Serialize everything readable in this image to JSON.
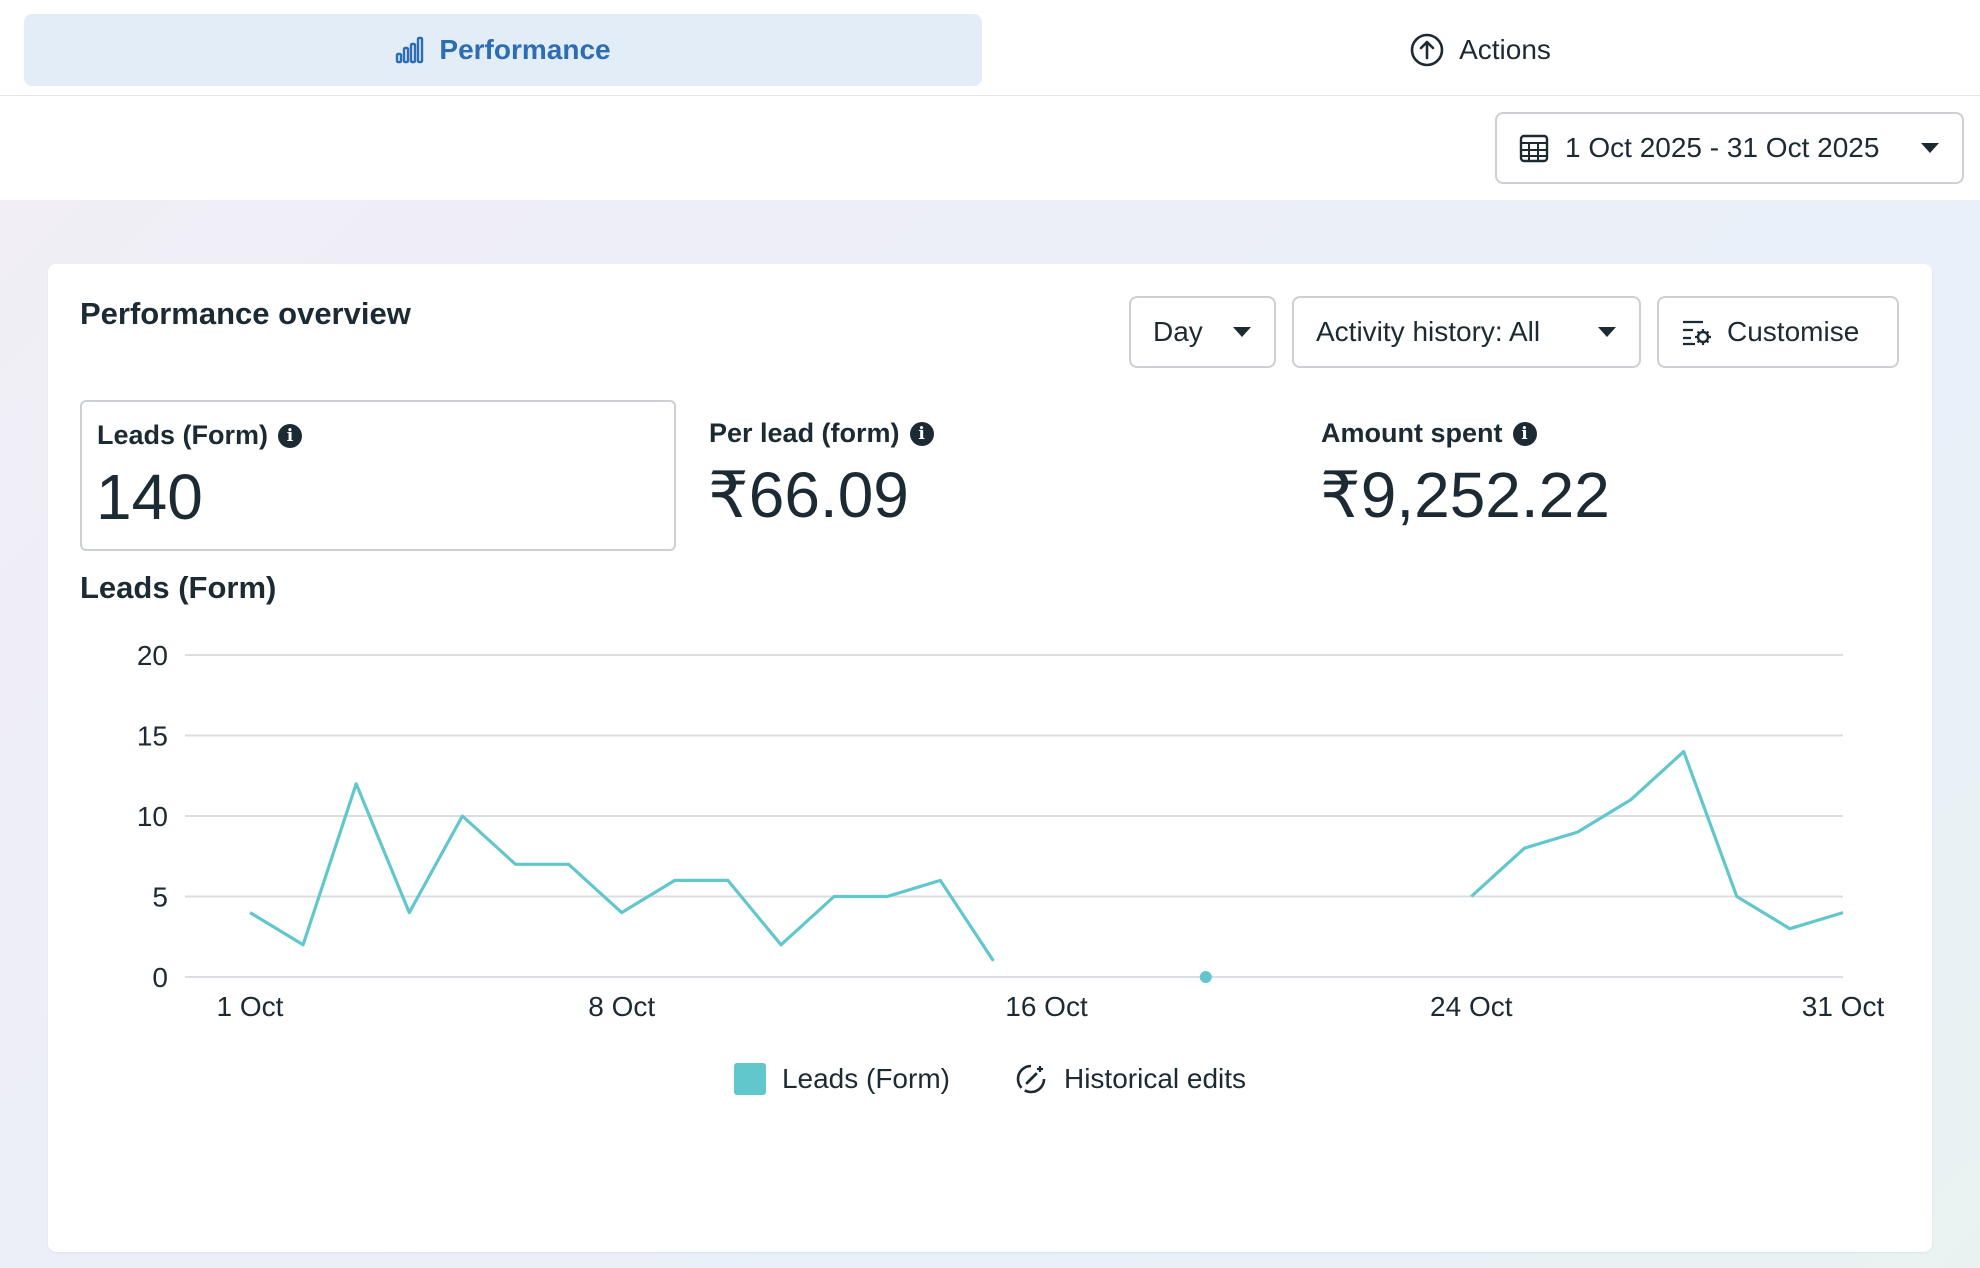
{
  "tabs": {
    "performance": {
      "label": "Performance",
      "icon": "bar-chart-icon"
    },
    "actions": {
      "label": "Actions",
      "icon": "arrow-up-circle-icon"
    }
  },
  "date_range": {
    "label": "1 Oct 2025 - 31 Oct 2025",
    "icon": "calendar-icon"
  },
  "overview": {
    "title": "Performance overview",
    "controls": {
      "granularity": "Day",
      "activity": "Activity history: All",
      "customise": "Customise"
    },
    "metrics": [
      {
        "label": "Leads (Form)",
        "value": "140"
      },
      {
        "label": "Per lead (form)",
        "value": "₹66.09"
      },
      {
        "label": "Amount spent",
        "value": "₹9,252.22"
      }
    ],
    "chart_title": "Leads (Form)",
    "legend": {
      "series": "Leads (Form)",
      "historical": "Historical edits"
    }
  },
  "colors": {
    "accent": "#2d6db3",
    "tab_active_bg": "#e3edf7",
    "series": "#62c7cc",
    "gridline": "#dadde1"
  },
  "chart_data": {
    "type": "line",
    "title": "Leads (Form)",
    "xlabel": "",
    "ylabel": "",
    "ylim": [
      0,
      20
    ],
    "yticks": [
      0,
      5,
      10,
      15,
      20
    ],
    "xticks": [
      {
        "day": 1,
        "label": "1 Oct"
      },
      {
        "day": 8,
        "label": "8 Oct"
      },
      {
        "day": 16,
        "label": "16 Oct"
      },
      {
        "day": 24,
        "label": "24 Oct"
      },
      {
        "day": 31,
        "label": "31 Oct"
      }
    ],
    "grid": true,
    "legend_position": "bottom",
    "series": [
      {
        "name": "Leads (Form)",
        "x": [
          1,
          2,
          3,
          4,
          5,
          6,
          7,
          8,
          9,
          10,
          11,
          12,
          13,
          14,
          15,
          16,
          17,
          18,
          19,
          20,
          21,
          22,
          23,
          24,
          25,
          26,
          27,
          28,
          29,
          30,
          31
        ],
        "y": [
          4,
          2,
          12,
          4,
          10,
          7,
          7,
          4,
          6,
          6,
          2,
          5,
          5,
          6,
          1,
          null,
          null,
          null,
          null,
          null,
          null,
          null,
          null,
          5,
          8,
          9,
          11,
          14,
          5,
          3,
          4
        ]
      }
    ],
    "historical_edits": [
      {
        "day": 19
      }
    ]
  }
}
